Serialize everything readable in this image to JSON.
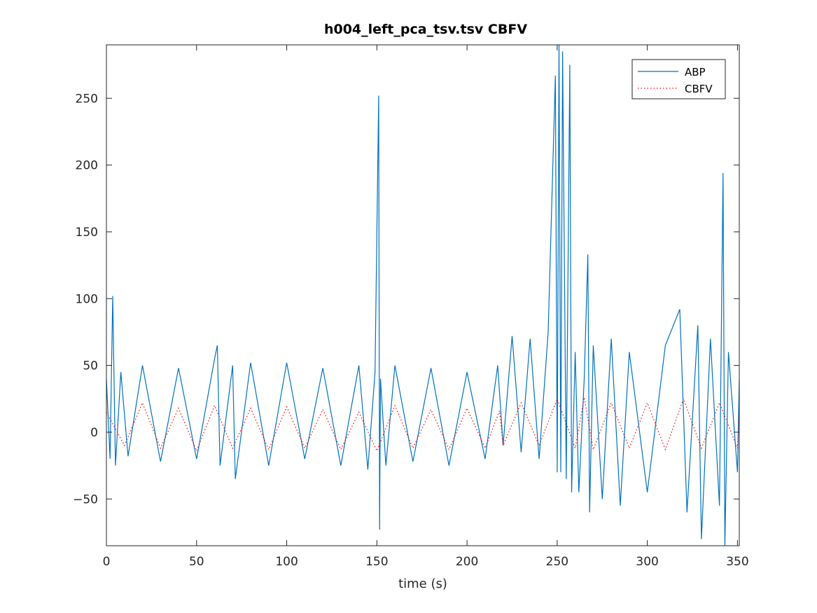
{
  "chart_data": {
    "type": "line",
    "title": "h004_left_pca_tsv.tsv CBFV",
    "xlabel": "time (s)",
    "ylabel": "",
    "xlim": [
      0,
      351
    ],
    "ylim": [
      -85,
      290
    ],
    "xticks": [
      0,
      50,
      100,
      150,
      200,
      250,
      300,
      350
    ],
    "yticks": [
      -50,
      0,
      50,
      100,
      150,
      200,
      250
    ],
    "ytick_labels": [
      "−50",
      "0",
      "50",
      "100",
      "150",
      "200",
      "250"
    ],
    "grid": false,
    "legend_position": "top-right",
    "colors": {
      "ABP": "#0072bd",
      "CBFV": "#ff0000"
    },
    "series": [
      {
        "name": "ABP",
        "style": "solid",
        "x": [
          0,
          2,
          3.5,
          5,
          8,
          12,
          20,
          30,
          40,
          50,
          60,
          61.5,
          63,
          70,
          71.5,
          80,
          90,
          100,
          110,
          120,
          130,
          140,
          145,
          149,
          151,
          151.5,
          152,
          155,
          160,
          170,
          180,
          190,
          200,
          210,
          217,
          220,
          225,
          230,
          235,
          240,
          245,
          249,
          250,
          251,
          252,
          253,
          255,
          257,
          258,
          260,
          262,
          265,
          267,
          268,
          270,
          275,
          280,
          285,
          290,
          300,
          310,
          318,
          322,
          328,
          330,
          335,
          340,
          342,
          343,
          345,
          350,
          351
        ],
        "y": [
          40,
          -20,
          102,
          -25,
          45,
          -18,
          50,
          -22,
          48,
          -20,
          55,
          65,
          -25,
          50,
          -35,
          52,
          -25,
          52,
          -20,
          48,
          -25,
          50,
          -28,
          45,
          252,
          -73,
          40,
          -25,
          50,
          -22,
          48,
          -25,
          45,
          -20,
          50,
          -10,
          72,
          -15,
          70,
          -20,
          75,
          267,
          -30,
          290,
          -30,
          285,
          -35,
          275,
          -45,
          60,
          -45,
          40,
          133,
          -60,
          65,
          -50,
          70,
          -55,
          60,
          -45,
          65,
          92,
          -60,
          80,
          -80,
          70,
          -55,
          194,
          -85,
          60,
          -30,
          40
        ]
      },
      {
        "name": "CBFV",
        "style": "dotted",
        "x": [
          0,
          10,
          20,
          30,
          40,
          50,
          60,
          70,
          80,
          90,
          100,
          110,
          120,
          130,
          140,
          150,
          160,
          170,
          180,
          190,
          200,
          210,
          218,
          220,
          230,
          240,
          250,
          260,
          265,
          270,
          280,
          290,
          300,
          310,
          320,
          330,
          340,
          350,
          351
        ],
        "y": [
          15,
          -10,
          22,
          -12,
          18,
          -14,
          20,
          -12,
          18,
          -13,
          19,
          -12,
          17,
          -13,
          15,
          -14,
          20,
          -12,
          17,
          -13,
          18,
          -12,
          16,
          -10,
          22,
          -10,
          25,
          -12,
          26,
          -13,
          22,
          -12,
          22,
          -13,
          25,
          -12,
          22,
          -12,
          15
        ]
      }
    ]
  }
}
